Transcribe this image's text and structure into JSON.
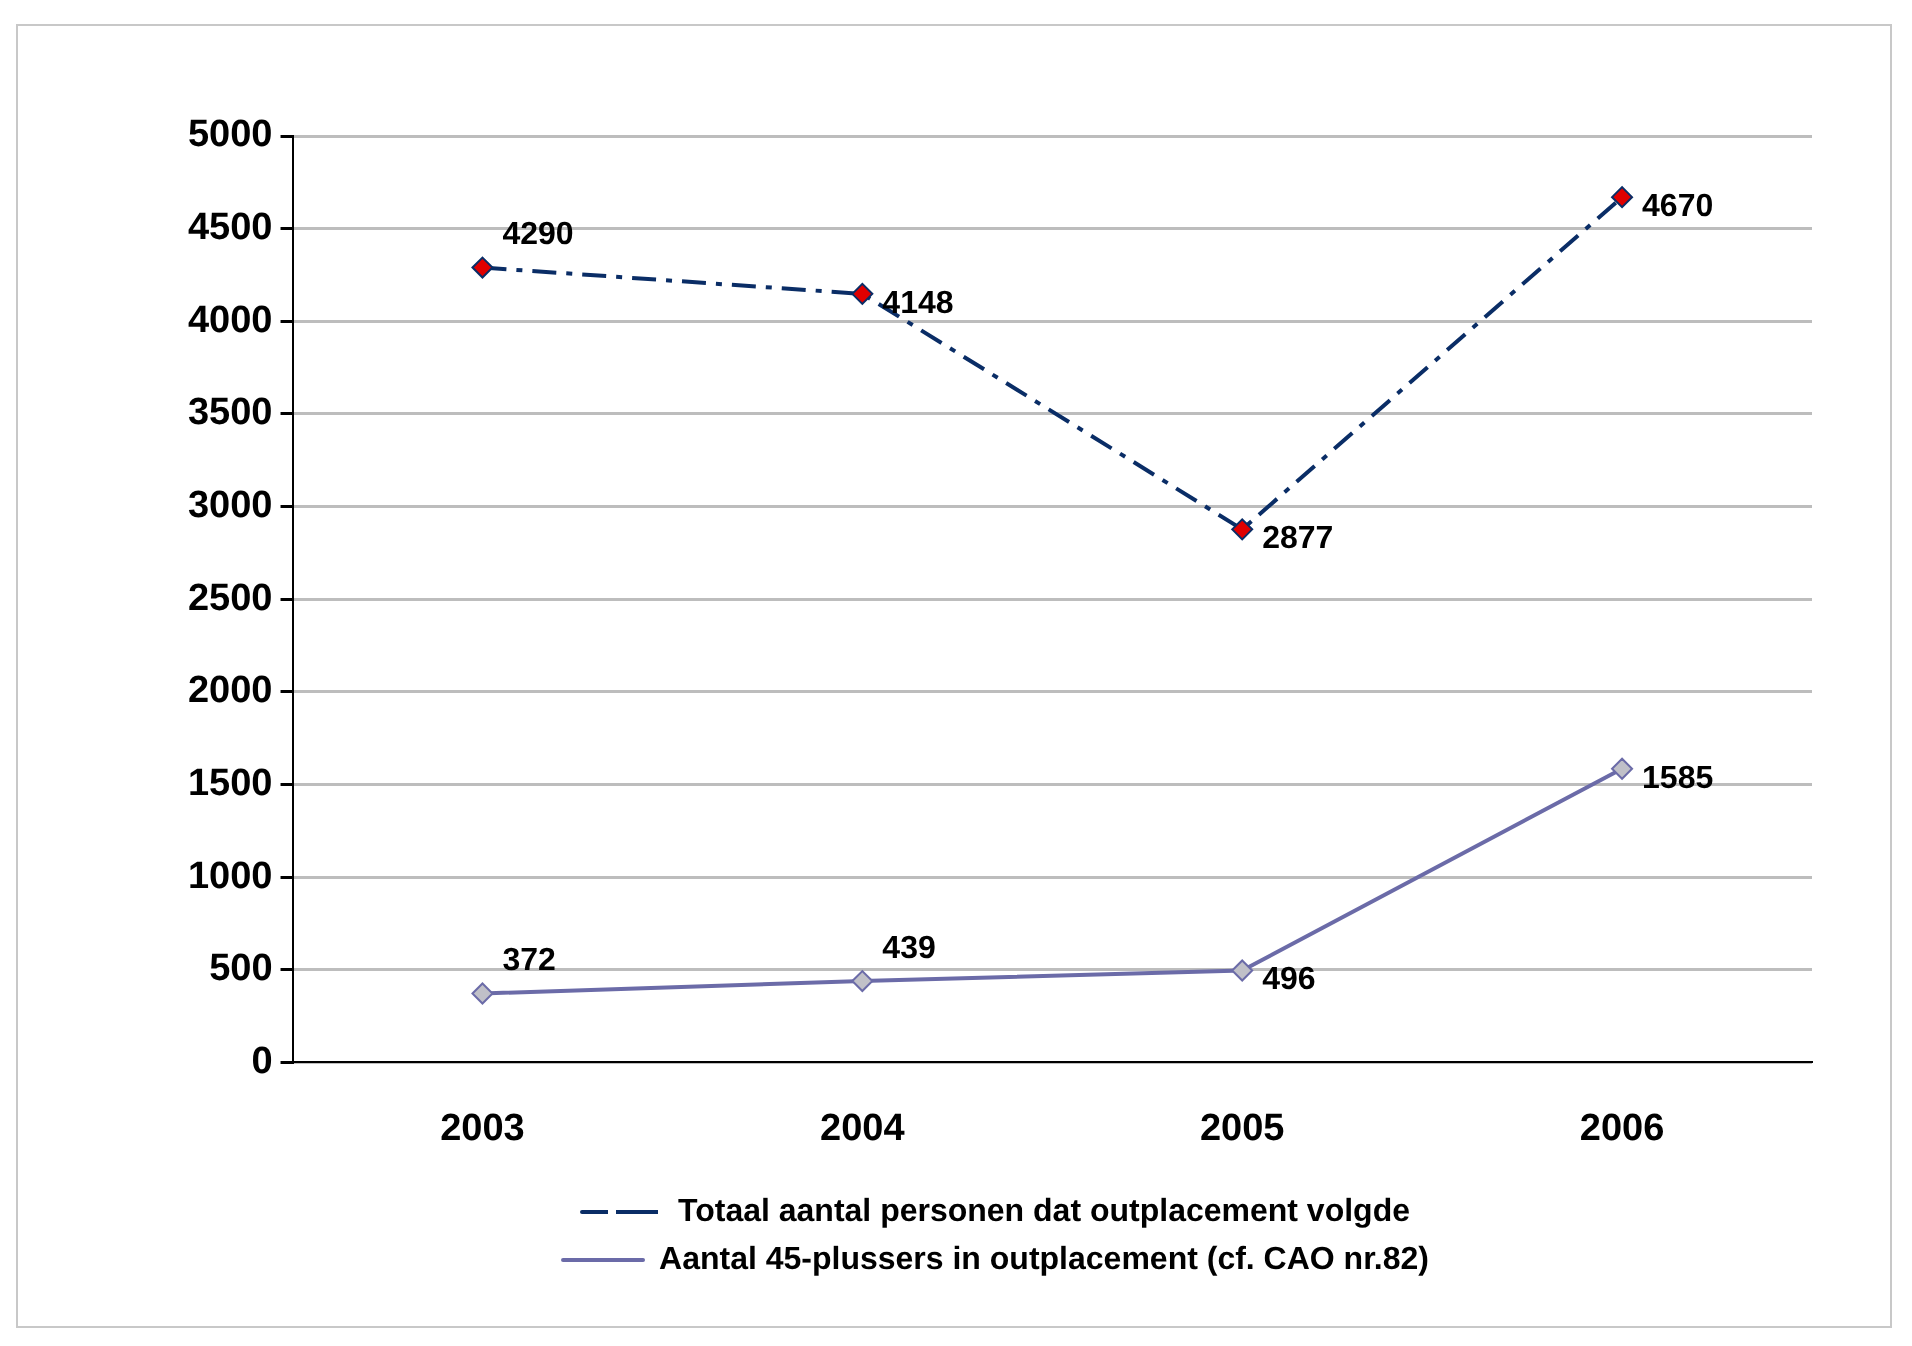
{
  "chart_data": {
    "type": "line",
    "categories": [
      "2003",
      "2004",
      "2005",
      "2006"
    ],
    "series": [
      {
        "name": "Totaal aantal personen dat outplacement volgde",
        "color": "#0a2d66",
        "values": [
          4290,
          4148,
          2877,
          4670
        ],
        "line_style": "dashed"
      },
      {
        "name": "Aantal 45-plussers in outplacement (cf. CAO nr.82)",
        "color": "#6b6ba8",
        "values": [
          372,
          439,
          496,
          1585
        ],
        "line_style": "solid"
      }
    ],
    "ylim": [
      0,
      5000
    ],
    "yticks": [
      0,
      500,
      1000,
      1500,
      2000,
      2500,
      3000,
      3500,
      4000,
      4500,
      5000
    ],
    "grid": "y",
    "legend": "bottom",
    "marker": "diamond",
    "data_labels": true
  }
}
